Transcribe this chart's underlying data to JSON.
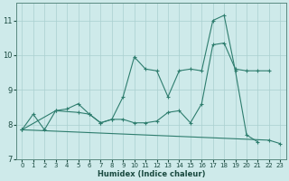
{
  "xlabel": "Humidex (Indice chaleur)",
  "background_color": "#ceeaea",
  "line_color": "#2e7d6e",
  "grid_color": "#aacfcf",
  "xlim": [
    -0.5,
    23.5
  ],
  "ylim": [
    7.0,
    11.5
  ],
  "yticks": [
    7,
    8,
    9,
    10,
    11
  ],
  "xticks": [
    0,
    1,
    2,
    3,
    4,
    5,
    6,
    7,
    8,
    9,
    10,
    11,
    12,
    13,
    14,
    15,
    16,
    17,
    18,
    19,
    20,
    21,
    22,
    23
  ],
  "series": [
    {
      "x": [
        0,
        1,
        2,
        3,
        4,
        5,
        6,
        7,
        8,
        9,
        10,
        11,
        12,
        13,
        14,
        15,
        16,
        17,
        18,
        19,
        20,
        21
      ],
      "y": [
        7.85,
        8.3,
        7.85,
        8.4,
        8.45,
        8.6,
        8.3,
        8.05,
        8.15,
        8.8,
        9.95,
        9.6,
        9.55,
        8.8,
        9.55,
        9.6,
        9.55,
        11.0,
        11.15,
        9.55,
        7.7,
        7.5
      ]
    },
    {
      "x": [
        0,
        3,
        5,
        6,
        7,
        8,
        9,
        10,
        11,
        12,
        13,
        14,
        15,
        16,
        17,
        18,
        19,
        20,
        21,
        22
      ],
      "y": [
        7.85,
        8.4,
        8.35,
        8.3,
        8.05,
        8.15,
        8.15,
        8.05,
        8.05,
        8.1,
        8.35,
        8.4,
        8.05,
        8.6,
        10.3,
        10.35,
        9.6,
        9.55,
        9.55,
        9.55
      ]
    },
    {
      "x": [
        0,
        22,
        23
      ],
      "y": [
        7.85,
        7.55,
        7.45
      ]
    }
  ]
}
